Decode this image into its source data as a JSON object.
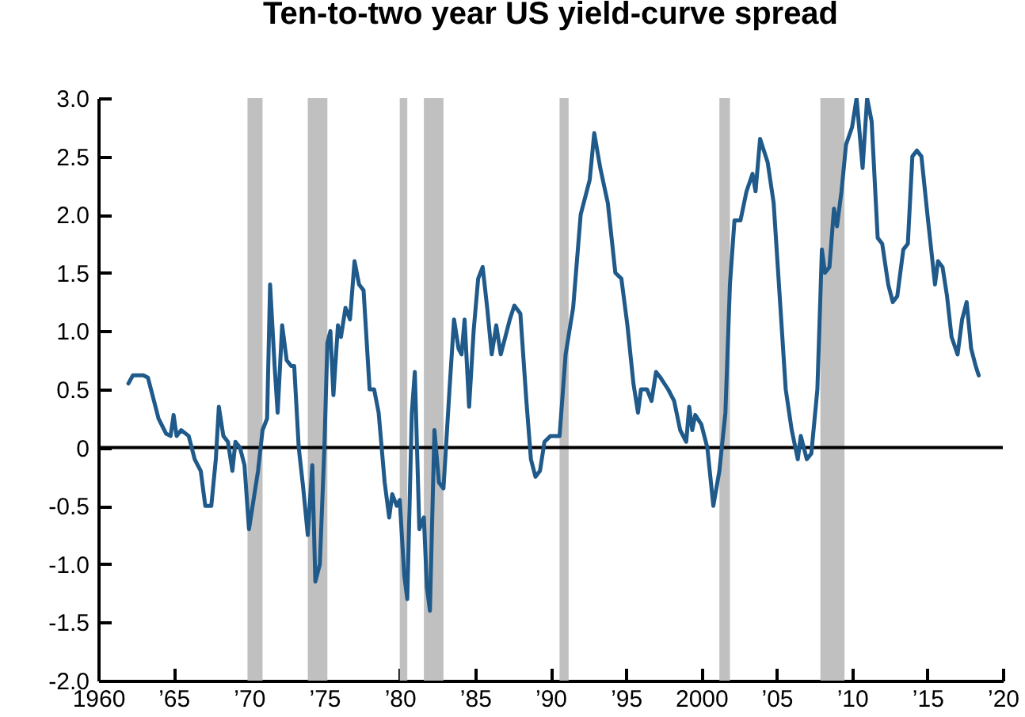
{
  "chart_data": {
    "type": "line",
    "title": "Ten-to-two year US yield-curve spread",
    "x": [
      1962.0,
      1962.3,
      1963.0,
      1963.3,
      1963.6,
      1964.0,
      1964.5,
      1964.8,
      1965.0,
      1965.2,
      1965.5,
      1966.0,
      1966.4,
      1966.8,
      1967.1,
      1967.5,
      1967.8,
      1968.0,
      1968.3,
      1968.6,
      1968.9,
      1969.1,
      1969.4,
      1969.7,
      1970.0,
      1970.3,
      1970.6,
      1970.9,
      1971.2,
      1971.4,
      1971.7,
      1971.9,
      1972.2,
      1972.5,
      1972.8,
      1973.0,
      1973.3,
      1973.6,
      1973.9,
      1974.2,
      1974.4,
      1974.7,
      1975.0,
      1975.2,
      1975.4,
      1975.6,
      1975.9,
      1976.1,
      1976.4,
      1976.7,
      1977.0,
      1977.3,
      1977.6,
      1978.0,
      1978.3,
      1978.6,
      1979.0,
      1979.3,
      1979.5,
      1979.8,
      1980.0,
      1980.3,
      1980.5,
      1980.8,
      1981.0,
      1981.3,
      1981.6,
      1981.8,
      1982.0,
      1982.3,
      1982.6,
      1982.9,
      1983.3,
      1983.6,
      1983.9,
      1984.1,
      1984.3,
      1984.6,
      1984.9,
      1985.2,
      1985.5,
      1985.8,
      1986.1,
      1986.4,
      1986.7,
      1987.0,
      1987.3,
      1987.6,
      1988.0,
      1988.4,
      1988.7,
      1989.0,
      1989.3,
      1989.6,
      1990.0,
      1990.6,
      1991.0,
      1991.5,
      1992.0,
      1992.6,
      1992.9,
      1993.3,
      1993.8,
      1994.3,
      1994.7,
      1995.1,
      1995.5,
      1995.8,
      1996.0,
      1996.4,
      1996.7,
      1997.0,
      1997.3,
      1997.8,
      1998.2,
      1998.6,
      1999.0,
      1999.2,
      1999.4,
      1999.6,
      2000.0,
      2000.4,
      2000.8,
      2001.2,
      2001.6,
      2001.9,
      2002.2,
      2002.6,
      2003.0,
      2003.4,
      2003.6,
      2003.9,
      2004.4,
      2004.8,
      2005.2,
      2005.6,
      2006.0,
      2006.4,
      2006.6,
      2007.0,
      2007.3,
      2007.7,
      2008.0,
      2008.2,
      2008.5,
      2008.8,
      2009.0,
      2009.3,
      2009.6,
      2010.0,
      2010.3,
      2010.7,
      2011.0,
      2011.3,
      2011.7,
      2012.0,
      2012.4,
      2012.7,
      2013.0,
      2013.4,
      2013.7,
      2014.0,
      2014.3,
      2014.6,
      2015.0,
      2015.5,
      2015.7,
      2016.0,
      2016.3,
      2016.6,
      2017.0,
      2017.3,
      2017.6,
      2017.9,
      2018.2,
      2018.4
    ],
    "series": [
      {
        "color": "#1f5a8a",
        "values": [
          0.55,
          0.62,
          0.62,
          0.6,
          0.45,
          0.25,
          0.12,
          0.1,
          0.28,
          0.1,
          0.15,
          0.1,
          -0.1,
          -0.2,
          -0.5,
          -0.5,
          -0.1,
          0.35,
          0.1,
          0.05,
          -0.2,
          0.05,
          0.0,
          -0.15,
          -0.7,
          -0.45,
          -0.2,
          0.15,
          0.25,
          1.4,
          0.7,
          0.3,
          1.05,
          0.75,
          0.7,
          0.7,
          0.0,
          -0.35,
          -0.75,
          -0.15,
          -1.15,
          -1.0,
          0.0,
          0.9,
          1.0,
          0.45,
          1.05,
          0.95,
          1.2,
          1.1,
          1.6,
          1.4,
          1.35,
          0.5,
          0.5,
          0.3,
          -0.3,
          -0.6,
          -0.4,
          -0.5,
          -0.45,
          -1.1,
          -1.3,
          0.3,
          0.65,
          -0.7,
          -0.6,
          -1.2,
          -1.4,
          0.15,
          -0.3,
          -0.35,
          0.5,
          1.1,
          0.85,
          0.8,
          1.1,
          0.35,
          1.0,
          1.45,
          1.55,
          1.2,
          0.8,
          1.05,
          0.8,
          0.95,
          1.1,
          1.22,
          1.15,
          0.4,
          -0.1,
          -0.25,
          -0.2,
          0.05,
          0.1,
          0.1,
          0.8,
          1.2,
          2.0,
          2.3,
          2.7,
          2.4,
          2.1,
          1.5,
          1.45,
          1.05,
          0.55,
          0.3,
          0.5,
          0.5,
          0.4,
          0.65,
          0.6,
          0.5,
          0.4,
          0.15,
          0.05,
          0.35,
          0.15,
          0.28,
          0.2,
          0.0,
          -0.5,
          -0.2,
          0.3,
          1.4,
          1.95,
          1.95,
          2.2,
          2.35,
          2.2,
          2.65,
          2.45,
          2.1,
          1.3,
          0.5,
          0.15,
          -0.1,
          0.1,
          -0.1,
          -0.05,
          0.5,
          1.7,
          1.5,
          1.55,
          2.05,
          1.9,
          2.2,
          2.6,
          2.75,
          3.0,
          2.4,
          3.0,
          2.8,
          1.8,
          1.75,
          1.4,
          1.25,
          1.3,
          1.7,
          1.75,
          2.5,
          2.55,
          2.5,
          2.0,
          1.4,
          1.6,
          1.55,
          1.3,
          0.95,
          0.8,
          1.1,
          1.25,
          0.85,
          0.7,
          0.62
        ]
      }
    ],
    "xlim": [
      1960,
      2020
    ],
    "xticks": [
      {
        "value": 1960,
        "label": "1960"
      },
      {
        "value": 1965,
        "label": "’65"
      },
      {
        "value": 1970,
        "label": "’70"
      },
      {
        "value": 1975,
        "label": "’75"
      },
      {
        "value": 1980,
        "label": "’80"
      },
      {
        "value": 1985,
        "label": "’85"
      },
      {
        "value": 1990,
        "label": "’90"
      },
      {
        "value": 1995,
        "label": "’95"
      },
      {
        "value": 2000,
        "label": "2000"
      },
      {
        "value": 2005,
        "label": "’05"
      },
      {
        "value": 2010,
        "label": "’10"
      },
      {
        "value": 2015,
        "label": "’15"
      },
      {
        "value": 2020,
        "label": "’20"
      }
    ],
    "ylim": [
      -2.0,
      3.0
    ],
    "yticks": [
      {
        "value": -2,
        "label": "-2.0"
      },
      -1.5,
      {
        "value": -1,
        "label": "-1.0"
      },
      -0.5,
      0,
      0.5,
      {
        "value": 1,
        "label": "1.0"
      },
      1.5,
      {
        "value": 2,
        "label": "2.0"
      },
      2.5,
      {
        "value": 3,
        "label": "3.0"
      }
    ],
    "bands": [
      {
        "axis": "x",
        "from": 1969.9,
        "to": 1970.9,
        "color": "#c0c0c0"
      },
      {
        "axis": "x",
        "from": 1973.9,
        "to": 1975.2,
        "color": "#c0c0c0"
      },
      {
        "axis": "x",
        "from": 1980.0,
        "to": 1980.5,
        "color": "#c0c0c0"
      },
      {
        "axis": "x",
        "from": 1981.6,
        "to": 1982.9,
        "color": "#c0c0c0"
      },
      {
        "axis": "x",
        "from": 1990.6,
        "to": 1991.2,
        "color": "#c0c0c0"
      },
      {
        "axis": "x",
        "from": 2001.2,
        "to": 2001.9,
        "color": "#c0c0c0"
      },
      {
        "axis": "x",
        "from": 2007.9,
        "to": 2009.5,
        "color": "#c0c0c0"
      }
    ],
    "ref_lines": [
      {
        "axis": "y",
        "value": 0,
        "color": "#000000"
      }
    ]
  }
}
